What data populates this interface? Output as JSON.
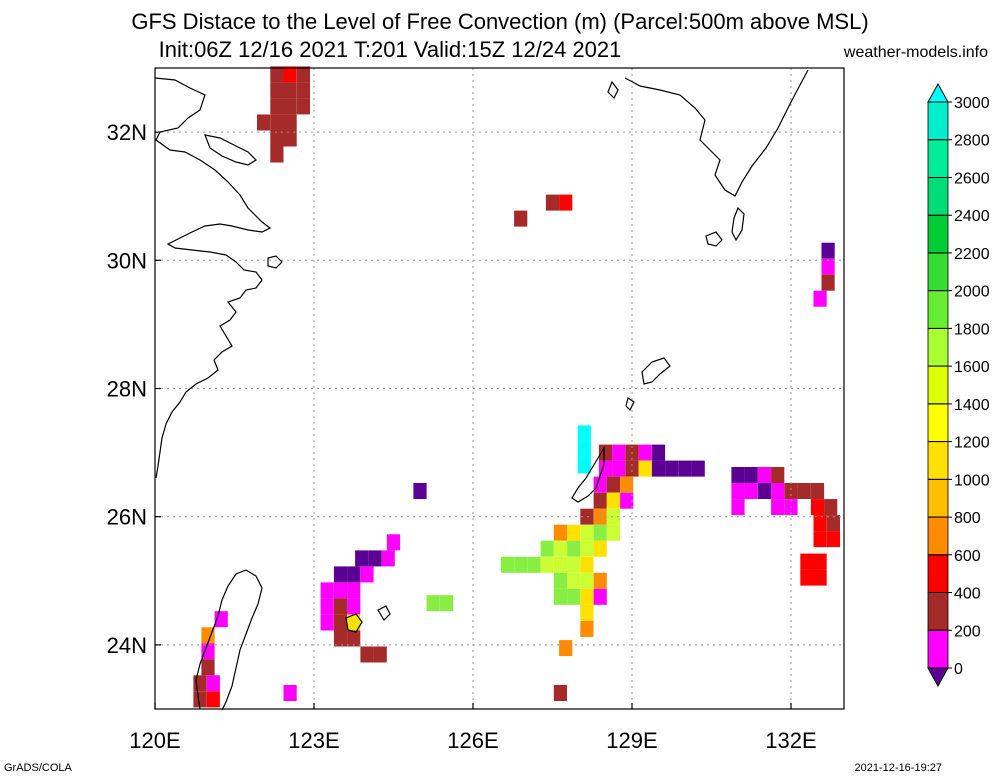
{
  "title_line1": "GFS Distace to the Level of Free Convection (m) (Parcel:500m above MSL)",
  "title_line2": "Init:06Z 12/16 2021 T:201 Valid:15Z 12/24 2021",
  "site": "weather-models.info",
  "footer_left": "GrADS/COLA",
  "footer_right": "2021-12-16-19:27",
  "map": {
    "lon_range": [
      120,
      133
    ],
    "lat_range": [
      23,
      33
    ],
    "lon_ticks": [
      {
        "value": 120,
        "label": "120E"
      },
      {
        "value": 123,
        "label": "123E"
      },
      {
        "value": 126,
        "label": "126E"
      },
      {
        "value": 129,
        "label": "129E"
      },
      {
        "value": 132,
        "label": "132E"
      }
    ],
    "lat_ticks": [
      {
        "value": 24,
        "label": "24N"
      },
      {
        "value": 26,
        "label": "26N"
      },
      {
        "value": 28,
        "label": "28N"
      },
      {
        "value": 30,
        "label": "30N"
      },
      {
        "value": 32,
        "label": "32N"
      }
    ],
    "grid": "dotted"
  },
  "colorbar": {
    "levels": [
      "0",
      "200",
      "400",
      "600",
      "800",
      "1000",
      "1200",
      "1400",
      "1600",
      "1800",
      "2000",
      "2200",
      "2400",
      "2600",
      "2800",
      "3000"
    ],
    "colors": [
      "#5a0092",
      "#ff00ff",
      "#a52a2a",
      "#ff0000",
      "#ff8c00",
      "#ffbf00",
      "#ffe100",
      "#ffff00",
      "#ddff00",
      "#aaff33",
      "#66ee33",
      "#33dd33",
      "#00cc33",
      "#00dd77",
      "#00ee99",
      "#00eecc",
      "#00ffff"
    ]
  },
  "fields": {
    "color_keys": {
      "P": "#5a0092",
      "M": "#ff00ff",
      "B": "#a52a2a",
      "R": "#ff0000",
      "O": "#ff8c00",
      "Y": "#ffe100",
      "G": "#ccff33",
      "L": "#88ee44",
      "C": "#00ffff"
    },
    "cells": [
      {
        "lon": 122.3,
        "lat": 32.9,
        "v": "B"
      },
      {
        "lon": 122.55,
        "lat": 32.9,
        "v": "R"
      },
      {
        "lon": 122.8,
        "lat": 32.9,
        "v": "B"
      },
      {
        "lon": 122.3,
        "lat": 32.65,
        "v": "B"
      },
      {
        "lon": 122.55,
        "lat": 32.65,
        "v": "B"
      },
      {
        "lon": 122.8,
        "lat": 32.65,
        "v": "B"
      },
      {
        "lon": 122.3,
        "lat": 32.4,
        "v": "B"
      },
      {
        "lon": 122.55,
        "lat": 32.4,
        "v": "B"
      },
      {
        "lon": 122.8,
        "lat": 32.4,
        "v": "B"
      },
      {
        "lon": 122.05,
        "lat": 32.15,
        "v": "B"
      },
      {
        "lon": 122.3,
        "lat": 32.15,
        "v": "B"
      },
      {
        "lon": 122.55,
        "lat": 32.15,
        "v": "B"
      },
      {
        "lon": 122.3,
        "lat": 31.9,
        "v": "B"
      },
      {
        "lon": 122.55,
        "lat": 31.9,
        "v": "B"
      },
      {
        "lon": 122.3,
        "lat": 31.65,
        "v": "B"
      },
      {
        "lon": 127.5,
        "lat": 30.9,
        "v": "B"
      },
      {
        "lon": 127.75,
        "lat": 30.9,
        "v": "R"
      },
      {
        "lon": 126.9,
        "lat": 30.65,
        "v": "B"
      },
      {
        "lon": 132.7,
        "lat": 30.15,
        "v": "P"
      },
      {
        "lon": 132.7,
        "lat": 29.9,
        "v": "M"
      },
      {
        "lon": 132.7,
        "lat": 29.65,
        "v": "B"
      },
      {
        "lon": 132.55,
        "lat": 29.4,
        "v": "M"
      },
      {
        "lon": 128.1,
        "lat": 27.3,
        "v": "C"
      },
      {
        "lon": 128.1,
        "lat": 27.05,
        "v": "C"
      },
      {
        "lon": 128.1,
        "lat": 26.8,
        "v": "C"
      },
      {
        "lon": 128.5,
        "lat": 27.0,
        "v": "B"
      },
      {
        "lon": 128.75,
        "lat": 27.0,
        "v": "M"
      },
      {
        "lon": 129.0,
        "lat": 27.0,
        "v": "B"
      },
      {
        "lon": 129.25,
        "lat": 27.0,
        "v": "M"
      },
      {
        "lon": 129.5,
        "lat": 27.0,
        "v": "P"
      },
      {
        "lon": 128.5,
        "lat": 26.75,
        "v": "M"
      },
      {
        "lon": 128.75,
        "lat": 26.75,
        "v": "M"
      },
      {
        "lon": 129.0,
        "lat": 26.75,
        "v": "B"
      },
      {
        "lon": 129.25,
        "lat": 26.75,
        "v": "Y"
      },
      {
        "lon": 129.5,
        "lat": 26.75,
        "v": "P"
      },
      {
        "lon": 129.75,
        "lat": 26.75,
        "v": "P"
      },
      {
        "lon": 130.0,
        "lat": 26.75,
        "v": "P"
      },
      {
        "lon": 130.25,
        "lat": 26.75,
        "v": "P"
      },
      {
        "lon": 128.4,
        "lat": 26.5,
        "v": "M"
      },
      {
        "lon": 128.65,
        "lat": 26.5,
        "v": "B"
      },
      {
        "lon": 128.9,
        "lat": 26.5,
        "v": "O"
      },
      {
        "lon": 128.4,
        "lat": 26.25,
        "v": "B"
      },
      {
        "lon": 128.65,
        "lat": 26.25,
        "v": "Y"
      },
      {
        "lon": 128.9,
        "lat": 26.25,
        "v": "M"
      },
      {
        "lon": 128.15,
        "lat": 26.0,
        "v": "B"
      },
      {
        "lon": 128.4,
        "lat": 26.0,
        "v": "O"
      },
      {
        "lon": 128.65,
        "lat": 26.0,
        "v": "G"
      },
      {
        "lon": 127.65,
        "lat": 25.75,
        "v": "O"
      },
      {
        "lon": 127.9,
        "lat": 25.75,
        "v": "Y"
      },
      {
        "lon": 128.15,
        "lat": 25.75,
        "v": "G"
      },
      {
        "lon": 128.4,
        "lat": 25.75,
        "v": "L"
      },
      {
        "lon": 128.65,
        "lat": 25.75,
        "v": "G"
      },
      {
        "lon": 127.4,
        "lat": 25.5,
        "v": "L"
      },
      {
        "lon": 127.65,
        "lat": 25.5,
        "v": "G"
      },
      {
        "lon": 127.9,
        "lat": 25.5,
        "v": "L"
      },
      {
        "lon": 128.15,
        "lat": 25.5,
        "v": "G"
      },
      {
        "lon": 128.4,
        "lat": 25.5,
        "v": "Y"
      },
      {
        "lon": 126.65,
        "lat": 25.25,
        "v": "L"
      },
      {
        "lon": 126.9,
        "lat": 25.25,
        "v": "L"
      },
      {
        "lon": 127.15,
        "lat": 25.25,
        "v": "L"
      },
      {
        "lon": 127.4,
        "lat": 25.25,
        "v": "G"
      },
      {
        "lon": 127.65,
        "lat": 25.25,
        "v": "G"
      },
      {
        "lon": 127.9,
        "lat": 25.25,
        "v": "G"
      },
      {
        "lon": 128.15,
        "lat": 25.25,
        "v": "Y"
      },
      {
        "lon": 127.65,
        "lat": 25.0,
        "v": "L"
      },
      {
        "lon": 127.9,
        "lat": 25.0,
        "v": "G"
      },
      {
        "lon": 128.15,
        "lat": 25.0,
        "v": "G"
      },
      {
        "lon": 128.4,
        "lat": 25.0,
        "v": "O"
      },
      {
        "lon": 127.65,
        "lat": 24.75,
        "v": "L"
      },
      {
        "lon": 127.9,
        "lat": 24.75,
        "v": "L"
      },
      {
        "lon": 128.15,
        "lat": 24.75,
        "v": "Y"
      },
      {
        "lon": 128.4,
        "lat": 24.75,
        "v": "M"
      },
      {
        "lon": 128.15,
        "lat": 24.5,
        "v": "Y"
      },
      {
        "lon": 128.15,
        "lat": 24.25,
        "v": "O"
      },
      {
        "lon": 125.0,
        "lat": 26.4,
        "v": "P"
      },
      {
        "lon": 125.5,
        "lat": 24.65,
        "v": "L"
      },
      {
        "lon": 125.25,
        "lat": 24.65,
        "v": "L"
      },
      {
        "lon": 131.0,
        "lat": 26.65,
        "v": "P"
      },
      {
        "lon": 131.25,
        "lat": 26.65,
        "v": "P"
      },
      {
        "lon": 131.5,
        "lat": 26.65,
        "v": "M"
      },
      {
        "lon": 131.75,
        "lat": 26.65,
        "v": "B"
      },
      {
        "lon": 131.0,
        "lat": 26.4,
        "v": "M"
      },
      {
        "lon": 131.25,
        "lat": 26.4,
        "v": "M"
      },
      {
        "lon": 131.5,
        "lat": 26.4,
        "v": "P"
      },
      {
        "lon": 131.75,
        "lat": 26.4,
        "v": "M"
      },
      {
        "lon": 132.0,
        "lat": 26.4,
        "v": "B"
      },
      {
        "lon": 132.25,
        "lat": 26.4,
        "v": "B"
      },
      {
        "lon": 132.5,
        "lat": 26.4,
        "v": "B"
      },
      {
        "lon": 131.0,
        "lat": 26.15,
        "v": "M"
      },
      {
        "lon": 131.75,
        "lat": 26.15,
        "v": "M"
      },
      {
        "lon": 132.0,
        "lat": 26.15,
        "v": "M"
      },
      {
        "lon": 132.5,
        "lat": 26.15,
        "v": "R"
      },
      {
        "lon": 132.75,
        "lat": 26.15,
        "v": "B"
      },
      {
        "lon": 132.55,
        "lat": 25.9,
        "v": "R"
      },
      {
        "lon": 132.8,
        "lat": 25.9,
        "v": "B"
      },
      {
        "lon": 132.55,
        "lat": 25.65,
        "v": "R"
      },
      {
        "lon": 132.8,
        "lat": 25.65,
        "v": "R"
      },
      {
        "lon": 132.3,
        "lat": 25.3,
        "v": "R"
      },
      {
        "lon": 132.55,
        "lat": 25.3,
        "v": "R"
      },
      {
        "lon": 132.3,
        "lat": 25.05,
        "v": "R"
      },
      {
        "lon": 132.55,
        "lat": 25.05,
        "v": "R"
      },
      {
        "lon": 124.5,
        "lat": 25.6,
        "v": "M"
      },
      {
        "lon": 123.9,
        "lat": 25.35,
        "v": "P"
      },
      {
        "lon": 124.15,
        "lat": 25.35,
        "v": "P"
      },
      {
        "lon": 124.4,
        "lat": 25.35,
        "v": "M"
      },
      {
        "lon": 123.5,
        "lat": 25.1,
        "v": "P"
      },
      {
        "lon": 123.75,
        "lat": 25.1,
        "v": "P"
      },
      {
        "lon": 124.0,
        "lat": 25.1,
        "v": "M"
      },
      {
        "lon": 123.25,
        "lat": 24.85,
        "v": "M"
      },
      {
        "lon": 123.5,
        "lat": 24.85,
        "v": "M"
      },
      {
        "lon": 123.75,
        "lat": 24.85,
        "v": "M"
      },
      {
        "lon": 123.25,
        "lat": 24.6,
        "v": "M"
      },
      {
        "lon": 123.5,
        "lat": 24.6,
        "v": "B"
      },
      {
        "lon": 123.75,
        "lat": 24.6,
        "v": "M"
      },
      {
        "lon": 123.25,
        "lat": 24.35,
        "v": "M"
      },
      {
        "lon": 123.5,
        "lat": 24.35,
        "v": "B"
      },
      {
        "lon": 123.75,
        "lat": 24.35,
        "v": "Y"
      },
      {
        "lon": 123.5,
        "lat": 24.1,
        "v": "B"
      },
      {
        "lon": 123.75,
        "lat": 24.1,
        "v": "B"
      },
      {
        "lon": 124.0,
        "lat": 23.85,
        "v": "B"
      },
      {
        "lon": 124.25,
        "lat": 23.85,
        "v": "B"
      },
      {
        "lon": 121.25,
        "lat": 24.4,
        "v": "M"
      },
      {
        "lon": 121.0,
        "lat": 24.15,
        "v": "O"
      },
      {
        "lon": 121.0,
        "lat": 23.9,
        "v": "M"
      },
      {
        "lon": 121.0,
        "lat": 23.65,
        "v": "B"
      },
      {
        "lon": 120.85,
        "lat": 23.4,
        "v": "B"
      },
      {
        "lon": 121.1,
        "lat": 23.4,
        "v": "M"
      },
      {
        "lon": 120.85,
        "lat": 23.15,
        "v": "B"
      },
      {
        "lon": 121.1,
        "lat": 23.15,
        "v": "R"
      },
      {
        "lon": 122.55,
        "lat": 23.25,
        "v": "M"
      },
      {
        "lon": 127.75,
        "lat": 23.95,
        "v": "O"
      },
      {
        "lon": 127.65,
        "lat": 23.25,
        "v": "B"
      }
    ]
  }
}
